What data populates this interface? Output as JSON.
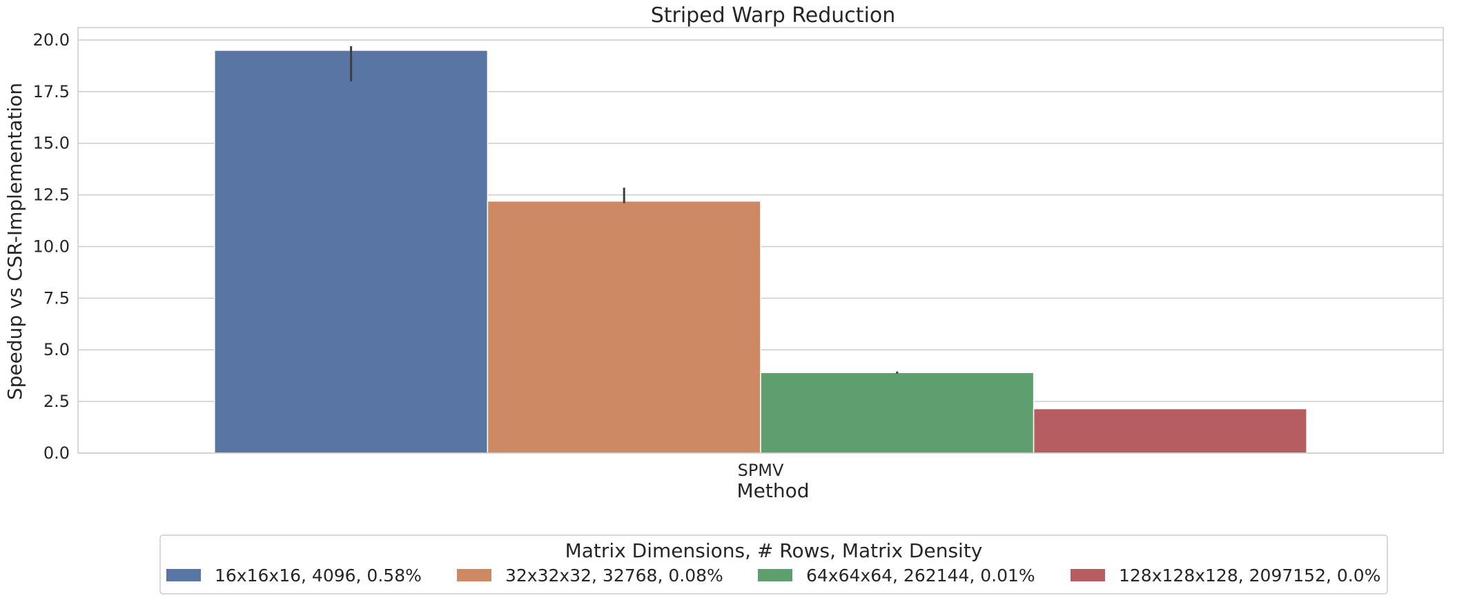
{
  "chart_data": {
    "type": "bar",
    "title": "Striped Warp Reduction",
    "xlabel": "Method",
    "ylabel": "Speedup vs CSR-Implementation",
    "categories": [
      "SPMV"
    ],
    "ylim": [
      0,
      20.6
    ],
    "yticks": [
      "0.0",
      "2.5",
      "5.0",
      "7.5",
      "10.0",
      "12.5",
      "15.0",
      "17.5",
      "20.0"
    ],
    "grid": true,
    "legend": {
      "title": "Matrix Dimensions, # Rows, Matrix Density",
      "placement": "bottom-center"
    },
    "series": [
      {
        "name": "16x16x16, 4096, 0.58%",
        "values": [
          19.5
        ],
        "error": [
          [
            18.0,
            19.7
          ]
        ],
        "color": "#5975a4"
      },
      {
        "name": "32x32x32, 32768, 0.08%",
        "values": [
          12.2
        ],
        "error": [
          [
            12.1,
            12.85
          ]
        ],
        "color": "#cc8963"
      },
      {
        "name": "64x64x64, 262144, 0.01%",
        "values": [
          3.9
        ],
        "error": [
          [
            3.85,
            3.95
          ]
        ],
        "color": "#5f9e6e"
      },
      {
        "name": "128x128x128, 2097152, 0.0%",
        "values": [
          2.15
        ],
        "error": null,
        "color": "#b55d60"
      }
    ]
  }
}
